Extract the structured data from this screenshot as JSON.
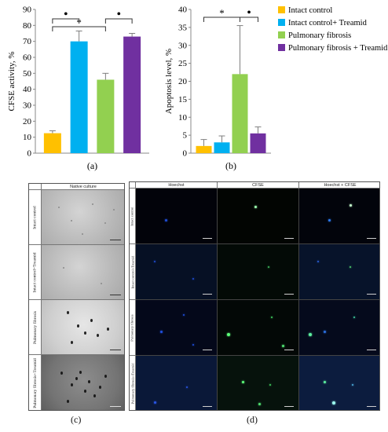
{
  "chart_data": [
    {
      "type": "bar",
      "panel_label": "(a)",
      "ylabel": "CFSE activity, %",
      "ylim": [
        0,
        90
      ],
      "yticks": [
        0,
        10,
        20,
        30,
        40,
        50,
        60,
        70,
        80,
        90
      ],
      "categories": [
        "Intact control",
        "Intact control+ Treamid",
        "Pulmonary fibrosis",
        "Pulmonary fibrosis + Treamid"
      ],
      "values": [
        12.5,
        70,
        46,
        73
      ],
      "errors": [
        1.5,
        6.5,
        4,
        2
      ],
      "colors": [
        "#FFC000",
        "#00B0F0",
        "#92D050",
        "#7030A0"
      ],
      "significance": [
        "*",
        "•",
        "•"
      ]
    },
    {
      "type": "bar",
      "panel_label": "(b)",
      "ylabel": "Apoptosis level, %",
      "ylim": [
        0,
        40
      ],
      "yticks": [
        0,
        5,
        10,
        15,
        20,
        25,
        30,
        35,
        40
      ],
      "categories": [
        "Intact control",
        "Intact control+ Treamid",
        "Pulmonary fibrosis",
        "Pulmonary fibrosis + Treamid"
      ],
      "values": [
        2,
        3,
        22,
        5.5
      ],
      "errors": [
        1.8,
        1.8,
        13.5,
        1.8
      ],
      "colors": [
        "#FFC000",
        "#00B0F0",
        "#92D050",
        "#7030A0"
      ],
      "significance": [
        "*",
        "•"
      ]
    }
  ],
  "legend": [
    {
      "label": "Intact control",
      "color": "#FFC000"
    },
    {
      "label": "Intact control+ Treamid",
      "color": "#00B0F0"
    },
    {
      "label": "Pulmonary fibrosis",
      "color": "#92D050"
    },
    {
      "label": "Pulmonary fibrosis + Treamid",
      "color": "#7030A0"
    }
  ],
  "micrographs": {
    "bright_field": {
      "column_header": "Native culture",
      "rows": [
        "Intact control",
        "Intact control+Treamid",
        "Pulmonary fibrosis",
        "Pulmonary fibrosis+Treamid"
      ],
      "panel_label": "(c)"
    },
    "fluorescence": {
      "column_headers": [
        "Hoechst",
        "CFSE",
        "Hoechst + CFSE"
      ],
      "rows": [
        "Intact control",
        "Intact control+Treamid",
        "Pulmonary fibrosis",
        "Pulmonary fibrosis+Treamid"
      ],
      "panel_label": "(d)"
    }
  }
}
